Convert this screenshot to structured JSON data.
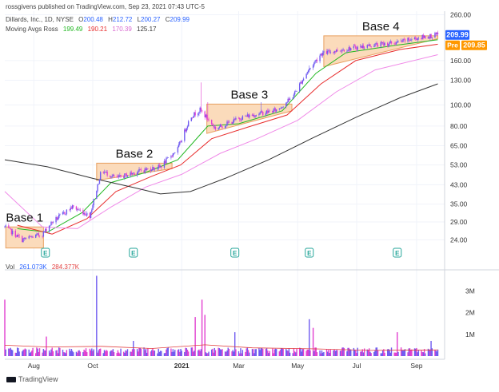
{
  "header": {
    "publish_line": "rossgivens published on TradingView.com, Sep 23, 2021 07:43 UTC-5",
    "symbol_title": "Dillards, Inc., 1D, NYSE",
    "ohlc": {
      "o_label": "O",
      "o": "200.48",
      "h_label": "H",
      "h": "212.72",
      "l_label": "L",
      "l": "200.27",
      "c_label": "C",
      "c": "209.99"
    },
    "ma_label": "Moving Avgs Ross",
    "ma_values": [
      "199.49",
      "190.21",
      "170.39",
      "125.17"
    ]
  },
  "volume_header": {
    "label": "Vol",
    "v1": "261.073K",
    "v2": "284.377K"
  },
  "price_badges": {
    "last": "209.99",
    "pre_label": "Pre",
    "pre": "209.85"
  },
  "branding": "TradingView",
  "colors": {
    "up": "#6f5bf0",
    "down": "#e23fd0",
    "ma10": "#22b822",
    "ma21": "#e82d2d",
    "ma50": "#f08ae8",
    "ma200": "#333333",
    "base_fill": "#fbd7b4",
    "base_stroke": "#e8a060",
    "badge_last": "#2962ff",
    "badge_pre": "#ff9800"
  },
  "chart_data": {
    "type": "candlestick",
    "title": "Dillards, Inc., 1D, NYSE",
    "y_scale": "log",
    "ylim": [
      19,
      270
    ],
    "y_ticks": [
      24,
      29,
      35,
      43,
      53,
      65,
      80,
      100,
      130,
      160,
      260
    ],
    "y_tick_labels": [
      "24.00",
      "29.00",
      "35.00",
      "43.00",
      "53.00",
      "65.00",
      "80.00",
      "100.00",
      "130.00",
      "160.00",
      "260.00"
    ],
    "x_range": [
      "2020-07-02",
      "2021-09-30"
    ],
    "x_ticks": [
      {
        "date": "2020-08-01",
        "label": "Aug"
      },
      {
        "date": "2020-10-01",
        "label": "Oct"
      },
      {
        "date": "2021-01-01",
        "label": "2021"
      },
      {
        "date": "2021-03-01",
        "label": "Mar"
      },
      {
        "date": "2021-05-01",
        "label": "May"
      },
      {
        "date": "2021-07-01",
        "label": "Jul"
      },
      {
        "date": "2021-09-01",
        "label": "Sep"
      }
    ],
    "price_path": [
      {
        "date": "2020-07-02",
        "price": 27.5
      },
      {
        "date": "2020-07-20",
        "price": 24
      },
      {
        "date": "2020-08-10",
        "price": 25.5
      },
      {
        "date": "2020-08-20",
        "price": 29
      },
      {
        "date": "2020-09-10",
        "price": 34
      },
      {
        "date": "2020-09-28",
        "price": 31
      },
      {
        "date": "2020-10-10",
        "price": 50
      },
      {
        "date": "2020-10-25",
        "price": 46
      },
      {
        "date": "2020-11-20",
        "price": 50
      },
      {
        "date": "2020-12-10",
        "price": 52
      },
      {
        "date": "2020-12-28",
        "price": 63
      },
      {
        "date": "2021-01-10",
        "price": 88
      },
      {
        "date": "2021-01-20",
        "price": 95
      },
      {
        "date": "2021-02-05",
        "price": 78
      },
      {
        "date": "2021-03-05",
        "price": 88
      },
      {
        "date": "2021-04-10",
        "price": 95
      },
      {
        "date": "2021-04-25",
        "price": 108
      },
      {
        "date": "2021-05-10",
        "price": 140
      },
      {
        "date": "2021-05-25",
        "price": 172
      },
      {
        "date": "2021-06-10",
        "price": 178
      },
      {
        "date": "2021-07-15",
        "price": 188
      },
      {
        "date": "2021-08-10",
        "price": 193
      },
      {
        "date": "2021-09-01",
        "price": 203
      },
      {
        "date": "2021-09-23",
        "price": 209.99
      }
    ],
    "spikes": [
      {
        "date": "2021-01-21",
        "high": 127
      },
      {
        "date": "2021-01-28",
        "high": 103
      },
      {
        "date": "2021-03-24",
        "high": 103
      },
      {
        "date": "2021-05-13",
        "high": 152
      }
    ],
    "moving_averages": [
      {
        "name": "MA10",
        "points": [
          {
            "date": "2020-07-15",
            "price": 27
          },
          {
            "date": "2020-08-15",
            "price": 26
          },
          {
            "date": "2020-09-20",
            "price": 32
          },
          {
            "date": "2020-10-20",
            "price": 44
          },
          {
            "date": "2020-11-25",
            "price": 49
          },
          {
            "date": "2020-12-28",
            "price": 56
          },
          {
            "date": "2021-01-28",
            "price": 80
          },
          {
            "date": "2021-03-01",
            "price": 82
          },
          {
            "date": "2021-04-15",
            "price": 94
          },
          {
            "date": "2021-05-20",
            "price": 140
          },
          {
            "date": "2021-06-20",
            "price": 174
          },
          {
            "date": "2021-08-10",
            "price": 188
          },
          {
            "date": "2021-09-23",
            "price": 199.49
          }
        ]
      },
      {
        "name": "MA21",
        "points": [
          {
            "date": "2020-07-15",
            "price": 28
          },
          {
            "date": "2020-08-20",
            "price": 25.5
          },
          {
            "date": "2020-09-25",
            "price": 30
          },
          {
            "date": "2020-10-25",
            "price": 40
          },
          {
            "date": "2020-12-01",
            "price": 47
          },
          {
            "date": "2020-12-31",
            "price": 53
          },
          {
            "date": "2021-02-01",
            "price": 70
          },
          {
            "date": "2021-03-10",
            "price": 79
          },
          {
            "date": "2021-04-20",
            "price": 90
          },
          {
            "date": "2021-05-25",
            "price": 125
          },
          {
            "date": "2021-06-30",
            "price": 160
          },
          {
            "date": "2021-08-15",
            "price": 180
          },
          {
            "date": "2021-09-23",
            "price": 190.21
          }
        ]
      },
      {
        "name": "MA50",
        "points": [
          {
            "date": "2020-07-02",
            "price": 40
          },
          {
            "date": "2020-08-10",
            "price": 27.5
          },
          {
            "date": "2020-09-15",
            "price": 27
          },
          {
            "date": "2020-10-20",
            "price": 34
          },
          {
            "date": "2020-11-25",
            "price": 42
          },
          {
            "date": "2021-01-01",
            "price": 48
          },
          {
            "date": "2021-02-10",
            "price": 60
          },
          {
            "date": "2021-03-20",
            "price": 70
          },
          {
            "date": "2021-05-01",
            "price": 85
          },
          {
            "date": "2021-06-10",
            "price": 115
          },
          {
            "date": "2021-07-20",
            "price": 145
          },
          {
            "date": "2021-09-23",
            "price": 170.39
          }
        ]
      },
      {
        "name": "MA200",
        "points": [
          {
            "date": "2020-07-02",
            "price": 56
          },
          {
            "date": "2020-08-15",
            "price": 52
          },
          {
            "date": "2020-10-01",
            "price": 46
          },
          {
            "date": "2020-11-10",
            "price": 42
          },
          {
            "date": "2020-12-10",
            "price": 39
          },
          {
            "date": "2021-01-10",
            "price": 40
          },
          {
            "date": "2021-02-15",
            "price": 46
          },
          {
            "date": "2021-04-01",
            "price": 56
          },
          {
            "date": "2021-05-15",
            "price": 70
          },
          {
            "date": "2021-07-01",
            "price": 88
          },
          {
            "date": "2021-08-15",
            "price": 108
          },
          {
            "date": "2021-09-23",
            "price": 125.17
          }
        ]
      }
    ],
    "bases": [
      {
        "label": "Base 1",
        "start": "2020-07-03",
        "end": "2020-08-11",
        "top": 27.5,
        "bottom": 22
      },
      {
        "label": "Base 2",
        "start": "2020-10-05",
        "end": "2020-12-22",
        "top": 54,
        "bottom": 45,
        "bottom_end": 51
      },
      {
        "label": "Base 3",
        "start": "2021-01-27",
        "end": "2021-04-25",
        "top": 101,
        "bottom": 74,
        "bottom_end": 94
      },
      {
        "label": "Base 4",
        "start": "2021-05-28",
        "end": "2021-09-23",
        "top": 208,
        "bottom": 150,
        "bottom_end": 202
      }
    ],
    "earnings_dates": [
      "2020-08-13",
      "2020-11-12",
      "2021-02-25",
      "2021-05-13",
      "2021-08-12"
    ],
    "earnings_marker_label": "E",
    "volume": {
      "y_ticks": [
        1000000,
        2000000,
        3000000
      ],
      "y_tick_labels": [
        "1M",
        "2M",
        "3M"
      ],
      "ylim": [
        0,
        3900000
      ],
      "typical": 250000,
      "spikes": [
        {
          "date": "2020-07-02",
          "value": 2600000
        },
        {
          "date": "2020-08-14",
          "value": 900000
        },
        {
          "date": "2020-10-05",
          "value": 3700000
        },
        {
          "date": "2020-11-12",
          "value": 700000
        },
        {
          "date": "2021-01-15",
          "value": 1800000
        },
        {
          "date": "2021-01-22",
          "value": 2600000
        },
        {
          "date": "2021-01-25",
          "value": 1900000
        },
        {
          "date": "2021-02-25",
          "value": 1100000
        },
        {
          "date": "2021-05-13",
          "value": 1700000
        },
        {
          "date": "2021-05-17",
          "value": 1300000
        },
        {
          "date": "2021-08-12",
          "value": 1100000
        },
        {
          "date": "2021-09-16",
          "value": 700000
        }
      ],
      "ma_points": [
        {
          "date": "2020-07-02",
          "value": 500000
        },
        {
          "date": "2020-08-15",
          "value": 420000
        },
        {
          "date": "2020-10-10",
          "value": 450000
        },
        {
          "date": "2020-12-01",
          "value": 350000
        },
        {
          "date": "2021-01-25",
          "value": 520000
        },
        {
          "date": "2021-03-15",
          "value": 380000
        },
        {
          "date": "2021-05-20",
          "value": 330000
        },
        {
          "date": "2021-07-15",
          "value": 260000
        },
        {
          "date": "2021-09-23",
          "value": 284377
        }
      ]
    }
  }
}
